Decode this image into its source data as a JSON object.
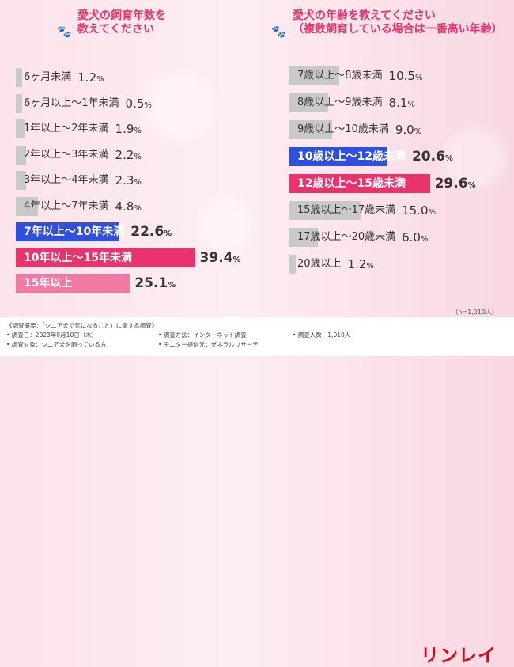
{
  "left": {
    "title_line1": "愛犬の飼育年数を",
    "title_line2": "教えてください"
  },
  "right": {
    "title_line1": "愛犬の年齢を教えてください",
    "title_line2": "（複数飼育している場合は一番高い年齢）"
  },
  "chart_data": [
    {
      "type": "bar",
      "orientation": "horizontal",
      "title": "愛犬の飼育年数を教えてください",
      "unit": "%",
      "categories": [
        "6ヶ月未満",
        "6ヶ月以上〜1年未満",
        "1年以上〜2年未満",
        "2年以上〜3年未満",
        "3年以上〜4年未満",
        "4年以上〜7年未満",
        "7年以上〜10年未満",
        "10年以上〜15年未満",
        "15年以上"
      ],
      "values": [
        1.2,
        0.5,
        1.9,
        2.2,
        2.3,
        4.8,
        22.6,
        39.4,
        25.1
      ],
      "highlight": [
        "",
        "",
        "",
        "",
        "",
        "",
        "blue",
        "pink",
        "lightpink"
      ],
      "colors": {
        "default": "#c9c9c9",
        "blue": "#2f4fe0",
        "pink": "#e8336d",
        "lightpink": "#f07aa3"
      }
    },
    {
      "type": "bar",
      "orientation": "horizontal",
      "title": "愛犬の年齢を教えてください（複数飼育している場合は一番高い年齢）",
      "unit": "%",
      "categories": [
        "7歳以上〜8歳未満",
        "8歳以上〜9歳未満",
        "9歳以上〜10歳未満",
        "10歳以上〜12歳未満",
        "12歳以上〜15歳未満",
        "15歳以上〜17歳未満",
        "17歳以上〜20歳未満",
        "20歳以上"
      ],
      "values": [
        10.5,
        8.1,
        9.0,
        20.6,
        29.6,
        15.0,
        6.0,
        1.2
      ],
      "highlight": [
        "",
        "",
        "",
        "blue",
        "pink",
        "",
        "",
        ""
      ],
      "colors": {
        "default": "#c9c9c9",
        "blue": "#2f4fe0",
        "pink": "#e8336d"
      }
    }
  ],
  "n_note": "（n=1,010人）",
  "footer": {
    "heading": "《調査概要：「シニア犬で気になること」に関する調査》",
    "date": "• 調査日：2023年8月10日（木）",
    "target": "• 調査対象：シニア犬を飼っている方",
    "method": "• 調査方法：インターネット調査",
    "provider": "• モニター提供元：ゼネラルリサーチ",
    "count": "• 調査人数：1,010人",
    "logo": "リンレイ"
  }
}
